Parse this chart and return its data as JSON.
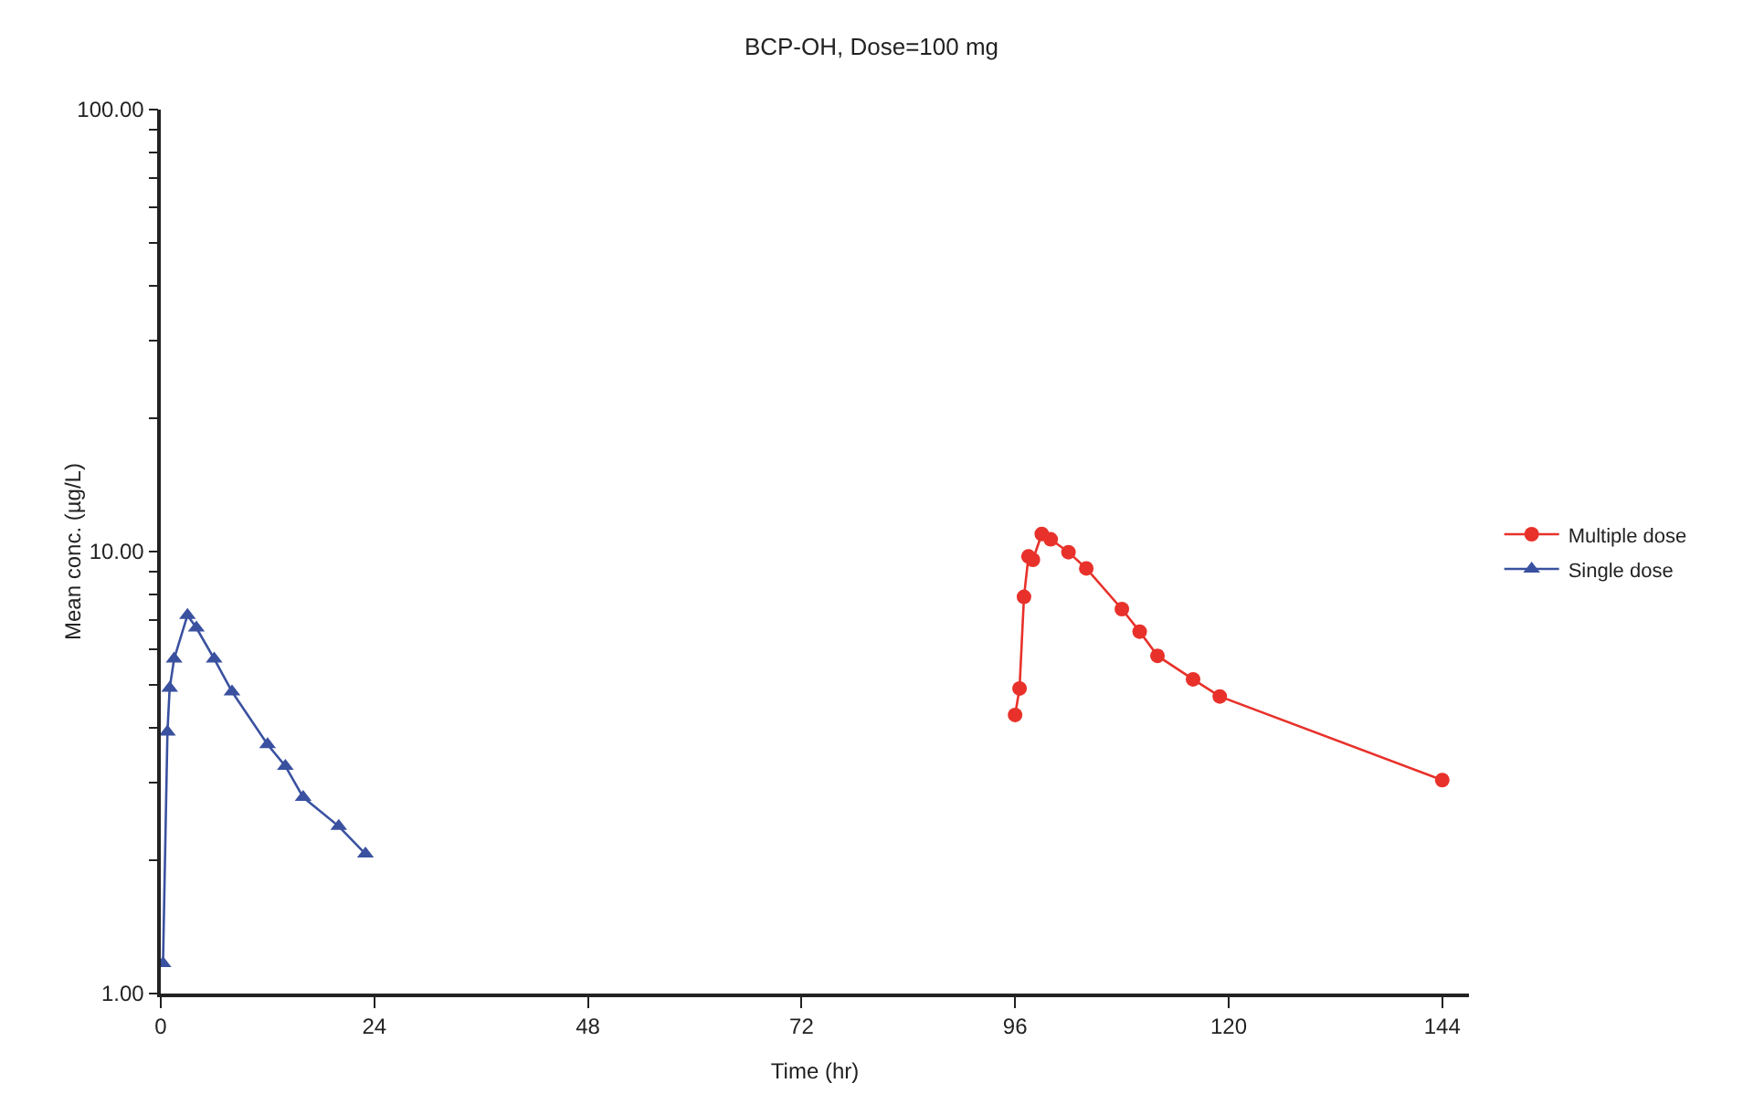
{
  "chart_data": {
    "type": "line",
    "title": "BCP-OH, Dose=100 mg",
    "xlabel": "Time (hr)",
    "ylabel": "Mean conc. (µg/L)",
    "log": "y",
    "grid": false,
    "legend": "right",
    "xlim": [
      0,
      147
    ],
    "xticks": [
      0,
      24,
      48,
      72,
      96,
      120,
      144
    ],
    "ylim": [
      1,
      100
    ],
    "yticks": [
      {
        "value": 1,
        "label": "1.00"
      },
      {
        "value": 2,
        "label": null
      },
      {
        "value": 3,
        "label": null
      },
      {
        "value": 4,
        "label": null
      },
      {
        "value": 5,
        "label": null
      },
      {
        "value": 6,
        "label": null
      },
      {
        "value": 7,
        "label": null
      },
      {
        "value": 8,
        "label": null
      },
      {
        "value": 9,
        "label": null
      },
      {
        "value": 10,
        "label": "10.00"
      },
      {
        "value": 20,
        "label": null
      },
      {
        "value": 30,
        "label": null
      },
      {
        "value": 40,
        "label": null
      },
      {
        "value": 50,
        "label": null
      },
      {
        "value": 60,
        "label": null
      },
      {
        "value": 70,
        "label": null
      },
      {
        "value": 80,
        "label": null
      },
      {
        "value": 90,
        "label": null
      },
      {
        "value": 100,
        "label": "100.00"
      }
    ],
    "series": [
      {
        "name": "Multiple dose",
        "color": "#e8312a",
        "marker": "circle",
        "x": [
          96,
          96.5,
          97,
          97.5,
          98,
          99,
          100,
          102,
          104,
          108,
          110,
          112,
          116,
          119,
          144
        ],
        "values": [
          4.27,
          4.9,
          7.9,
          9.75,
          9.58,
          10.96,
          10.66,
          9.97,
          9.16,
          7.41,
          6.59,
          5.81,
          5.14,
          4.7,
          3.04
        ]
      },
      {
        "name": "Single dose",
        "color": "#3a51a0",
        "marker": "triangle",
        "x": [
          0.25,
          0.75,
          1,
          1.5,
          3,
          4,
          6,
          8,
          12,
          14,
          16,
          20,
          23
        ],
        "values": [
          1.17,
          3.91,
          4.91,
          5.72,
          7.18,
          6.72,
          5.72,
          4.82,
          3.66,
          3.27,
          2.78,
          2.39,
          2.07
        ]
      }
    ]
  }
}
